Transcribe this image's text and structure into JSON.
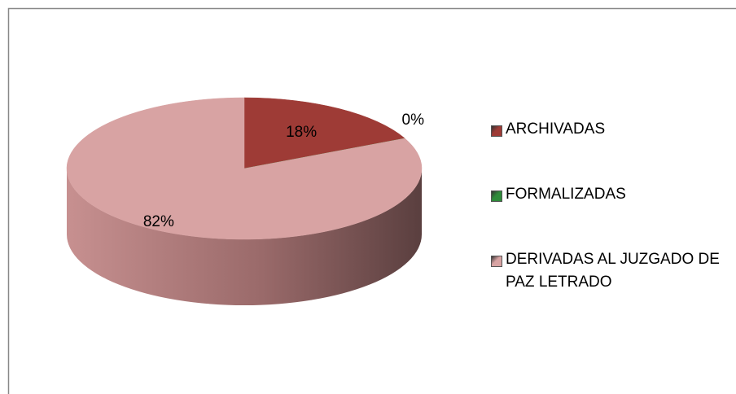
{
  "chart_data": {
    "type": "pie",
    "categories": [
      "ARCHIVADAS",
      "FORMALIZADAS",
      "DERIVADAS AL JUZGADO DE PAZ LETRADO"
    ],
    "values": [
      18,
      0,
      82
    ],
    "value_labels": [
      "18%",
      "0%",
      "82%"
    ],
    "colors": [
      "#9e3b36",
      "#2e8b3a",
      "#d8a3a3"
    ],
    "legend": "right"
  }
}
